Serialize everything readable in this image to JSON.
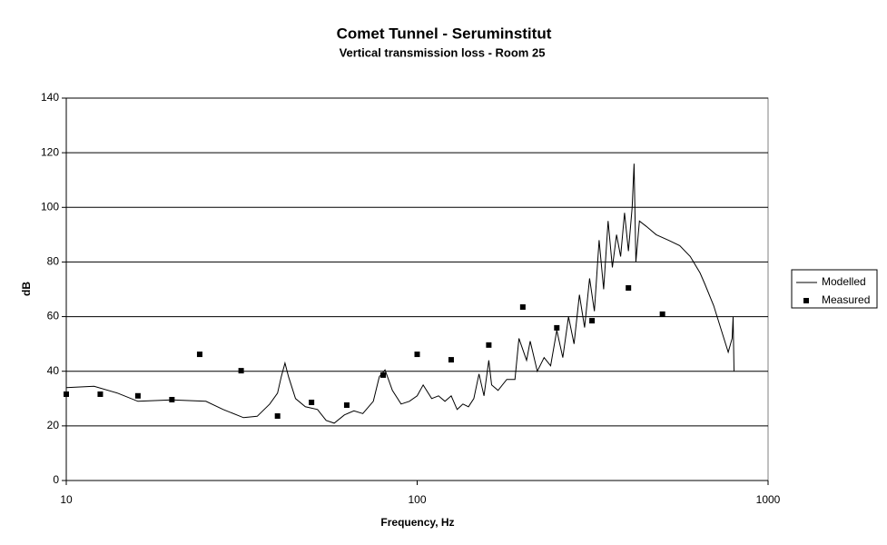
{
  "chart_data": {
    "type": "line-scatter",
    "title": "Comet Tunnel - Seruminstitut",
    "subtitle": "Vertical transmission loss - Room 25",
    "x_label": "Frequency, Hz",
    "y_label": "dB",
    "xscale": "log",
    "grid": true,
    "legend": "right",
    "xlim": [
      10,
      1000
    ],
    "xticks": [
      10,
      100,
      1000
    ],
    "ylim": [
      0,
      140
    ],
    "yticks": [
      0,
      20,
      40,
      60,
      80,
      100,
      120,
      140
    ],
    "series": [
      {
        "name": "Modelled",
        "type": "line",
        "color": "#000000",
        "x": [
          10,
          12,
          14,
          16,
          20,
          25,
          28,
          32,
          35,
          38,
          40,
          41,
          42,
          43,
          45,
          48,
          52,
          55,
          58,
          62,
          66,
          70,
          75,
          78,
          81,
          85,
          90,
          95,
          100,
          104,
          110,
          115,
          120,
          125,
          130,
          135,
          140,
          145,
          150,
          155,
          160,
          163,
          170,
          180,
          190,
          195,
          200,
          205,
          210,
          220,
          230,
          240,
          250,
          260,
          270,
          280,
          290,
          300,
          310,
          320,
          330,
          340,
          350,
          360,
          370,
          380,
          390,
          400,
          410,
          415,
          420,
          430,
          450,
          480,
          520,
          560,
          600,
          640,
          660,
          700,
          740,
          770,
          790,
          795,
          800
        ],
        "values": [
          34,
          34.5,
          32,
          29,
          29.5,
          29,
          26,
          23,
          23.5,
          28,
          32,
          38,
          43,
          38,
          30,
          27,
          26,
          22,
          21,
          24,
          25.5,
          24.5,
          29,
          38,
          40.5,
          33,
          28,
          29,
          31,
          35,
          30,
          31,
          29,
          31,
          26,
          28,
          27,
          30,
          39,
          31,
          44,
          35,
          33,
          37,
          37,
          52,
          48,
          44,
          51,
          40,
          45,
          42,
          55,
          45,
          60,
          50,
          68,
          56,
          74,
          62,
          88,
          70,
          95,
          78,
          90,
          82,
          98,
          84,
          100,
          116,
          80,
          95,
          93,
          90,
          88,
          86,
          82,
          76,
          72,
          64,
          54,
          47,
          52,
          60,
          40
        ]
      },
      {
        "name": "Measured",
        "type": "scatter",
        "color": "#000000",
        "x": [
          10,
          12.5,
          16,
          20,
          24,
          31.5,
          40,
          50,
          63,
          80,
          100,
          125,
          160,
          200,
          250,
          315,
          400,
          500
        ],
        "values": [
          31.6,
          31.6,
          31,
          29.6,
          46.2,
          40.2,
          23.6,
          28.6,
          27.6,
          38.6,
          46.2,
          44.2,
          49.6,
          63.5,
          55.9,
          58.5,
          70.5,
          60.9
        ]
      }
    ]
  }
}
